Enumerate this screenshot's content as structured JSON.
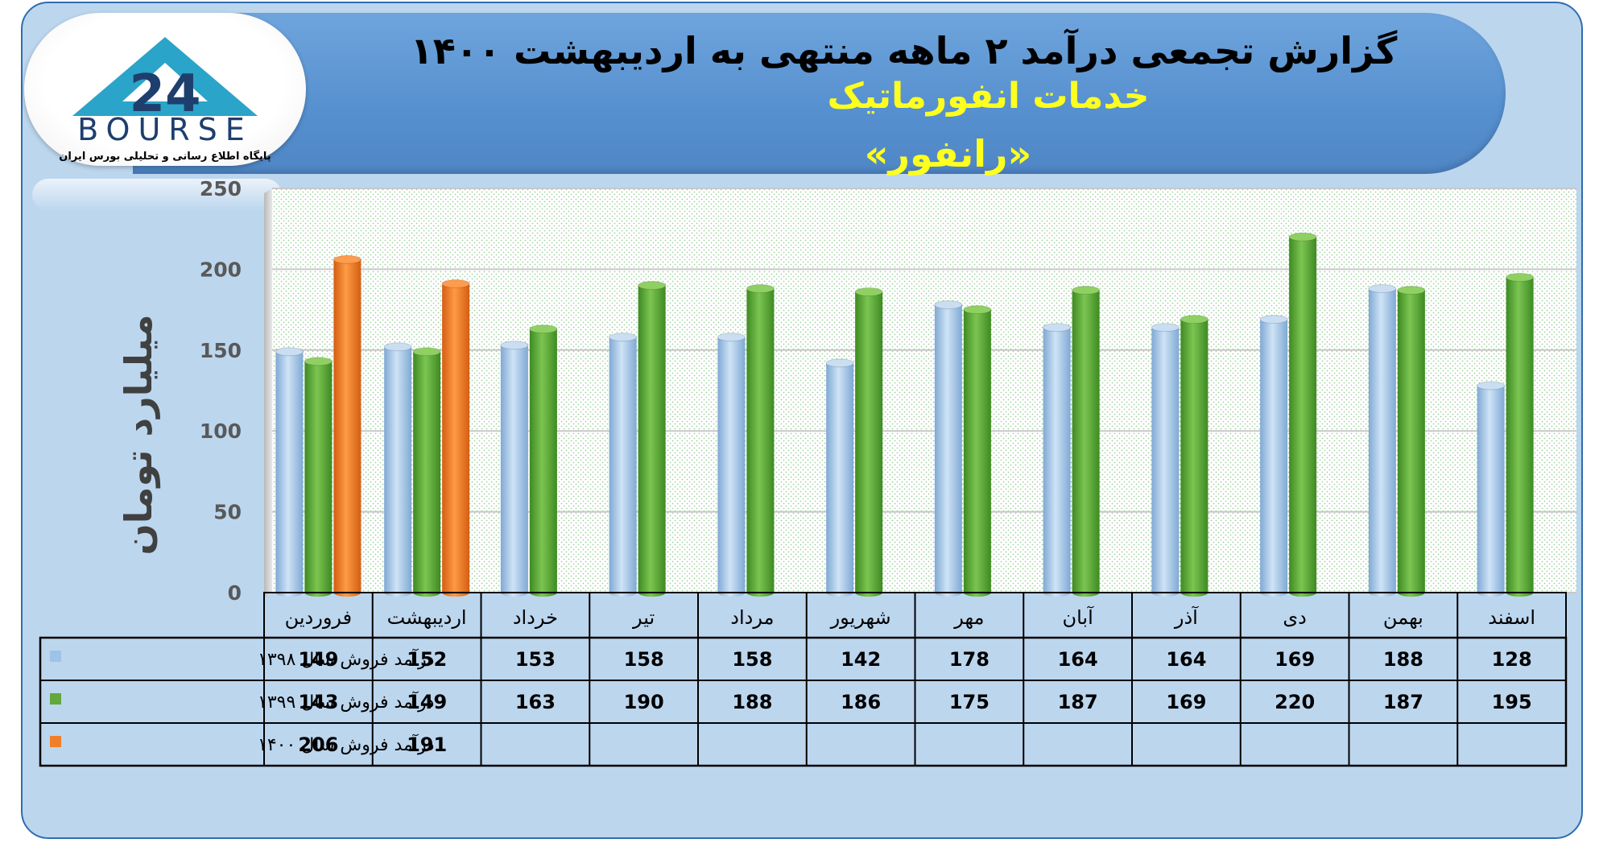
{
  "header": {
    "title": "گزارش تجمعی درآمد ۲ ماهه منتهی به اردیبهشت ۱۴۰۰",
    "subtitle": "خدمات انفورماتیک",
    "company": "«رانفور»"
  },
  "logo": {
    "text": "BOURSE",
    "tagline": "پایگاه اطلاع رسانی و تحلیلی بورس ایران",
    "colors": {
      "triangle": "#2aa4c8",
      "text": "#1e3f6e"
    }
  },
  "chart_data": {
    "type": "bar",
    "ylabel": "میلیارد تومان",
    "ylim": [
      0,
      250
    ],
    "yticks": [
      0,
      50,
      100,
      150,
      200,
      250
    ],
    "grid": true,
    "categories": [
      "فروردین",
      "اردیبهشت",
      "خرداد",
      "تیر",
      "مرداد",
      "شهریور",
      "مهر",
      "آبان",
      "آذر",
      "دی",
      "بهمن",
      "اسفند"
    ],
    "series": [
      {
        "name": "درآمد فروش سال ۱۳۹۸",
        "color": "#9dc3e6",
        "values": [
          149,
          152,
          153,
          158,
          158,
          142,
          178,
          164,
          164,
          169,
          188,
          128
        ]
      },
      {
        "name": "درآمد فروش سال ۱۳۹۹",
        "color": "#62a83a",
        "values": [
          143,
          149,
          163,
          190,
          188,
          186,
          175,
          187,
          169,
          220,
          187,
          195
        ]
      },
      {
        "name": "درآمد فروش سال ۱۴۰۰",
        "color": "#f07f2a",
        "values": [
          206,
          191,
          null,
          null,
          null,
          null,
          null,
          null,
          null,
          null,
          null,
          null
        ]
      }
    ]
  }
}
